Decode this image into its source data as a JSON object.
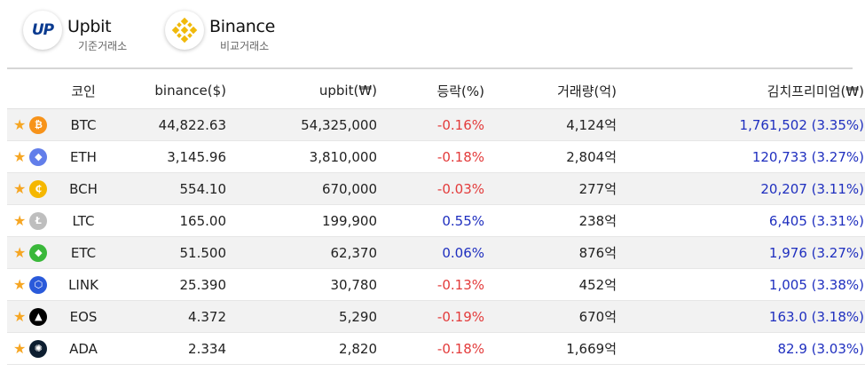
{
  "header": {
    "upbit": {
      "logo_text": "UP",
      "name": "Upbit",
      "sub": "기준거래소"
    },
    "binance": {
      "name": "Binance",
      "sub": "비교거래소"
    }
  },
  "table": {
    "columns": [
      "코인",
      "binance($)",
      "upbit(₩)",
      "등락(%)",
      "거래량(억)",
      "김치프리미엄(₩)"
    ],
    "rows": [
      {
        "symbol": "BTC",
        "icon": "bitcoin-icon",
        "binance": "44,822.63",
        "upbit": "54,325,000",
        "change": "-0.16%",
        "volume": "4,124억",
        "premium": "1,761,502 (3.35%)"
      },
      {
        "symbol": "ETH",
        "icon": "ethereum-icon",
        "binance": "3,145.96",
        "upbit": "3,810,000",
        "change": "-0.18%",
        "volume": "2,804억",
        "premium": "120,733 (3.27%)"
      },
      {
        "symbol": "BCH",
        "icon": "bitcoin-cash-icon",
        "binance": "554.10",
        "upbit": "670,000",
        "change": "-0.03%",
        "volume": "277억",
        "premium": "20,207 (3.11%)"
      },
      {
        "symbol": "LTC",
        "icon": "litecoin-icon",
        "binance": "165.00",
        "upbit": "199,900",
        "change": "0.55%",
        "volume": "238억",
        "premium": "6,405 (3.31%)"
      },
      {
        "symbol": "ETC",
        "icon": "ethereum-classic-icon",
        "binance": "51.500",
        "upbit": "62,370",
        "change": "0.06%",
        "volume": "876억",
        "premium": "1,976 (3.27%)"
      },
      {
        "symbol": "LINK",
        "icon": "chainlink-icon",
        "binance": "25.390",
        "upbit": "30,780",
        "change": "-0.13%",
        "volume": "452억",
        "premium": "1,005 (3.38%)"
      },
      {
        "symbol": "EOS",
        "icon": "eos-icon",
        "binance": "4.372",
        "upbit": "5,290",
        "change": "-0.19%",
        "volume": "670억",
        "premium": "163.0 (3.18%)"
      },
      {
        "symbol": "ADA",
        "icon": "cardano-icon",
        "binance": "2.334",
        "upbit": "2,820",
        "change": "-0.18%",
        "volume": "1,669억",
        "premium": "82.9 (3.03%)"
      }
    ]
  },
  "colors": {
    "negative": "#e33b3b",
    "positive": "#1f2fbf",
    "premium": "#1f2fbf",
    "star": "#f6a623",
    "row_alt": "#f2f2f2",
    "coin_btc": "#f7931a",
    "coin_eth": "#627eea",
    "coin_bch": "#f5b700",
    "coin_ltc": "#bebebe",
    "coin_etc": "#3ab83a",
    "coin_link": "#2a5ada",
    "coin_eos": "#000000",
    "coin_ada": "#0d1e30"
  }
}
